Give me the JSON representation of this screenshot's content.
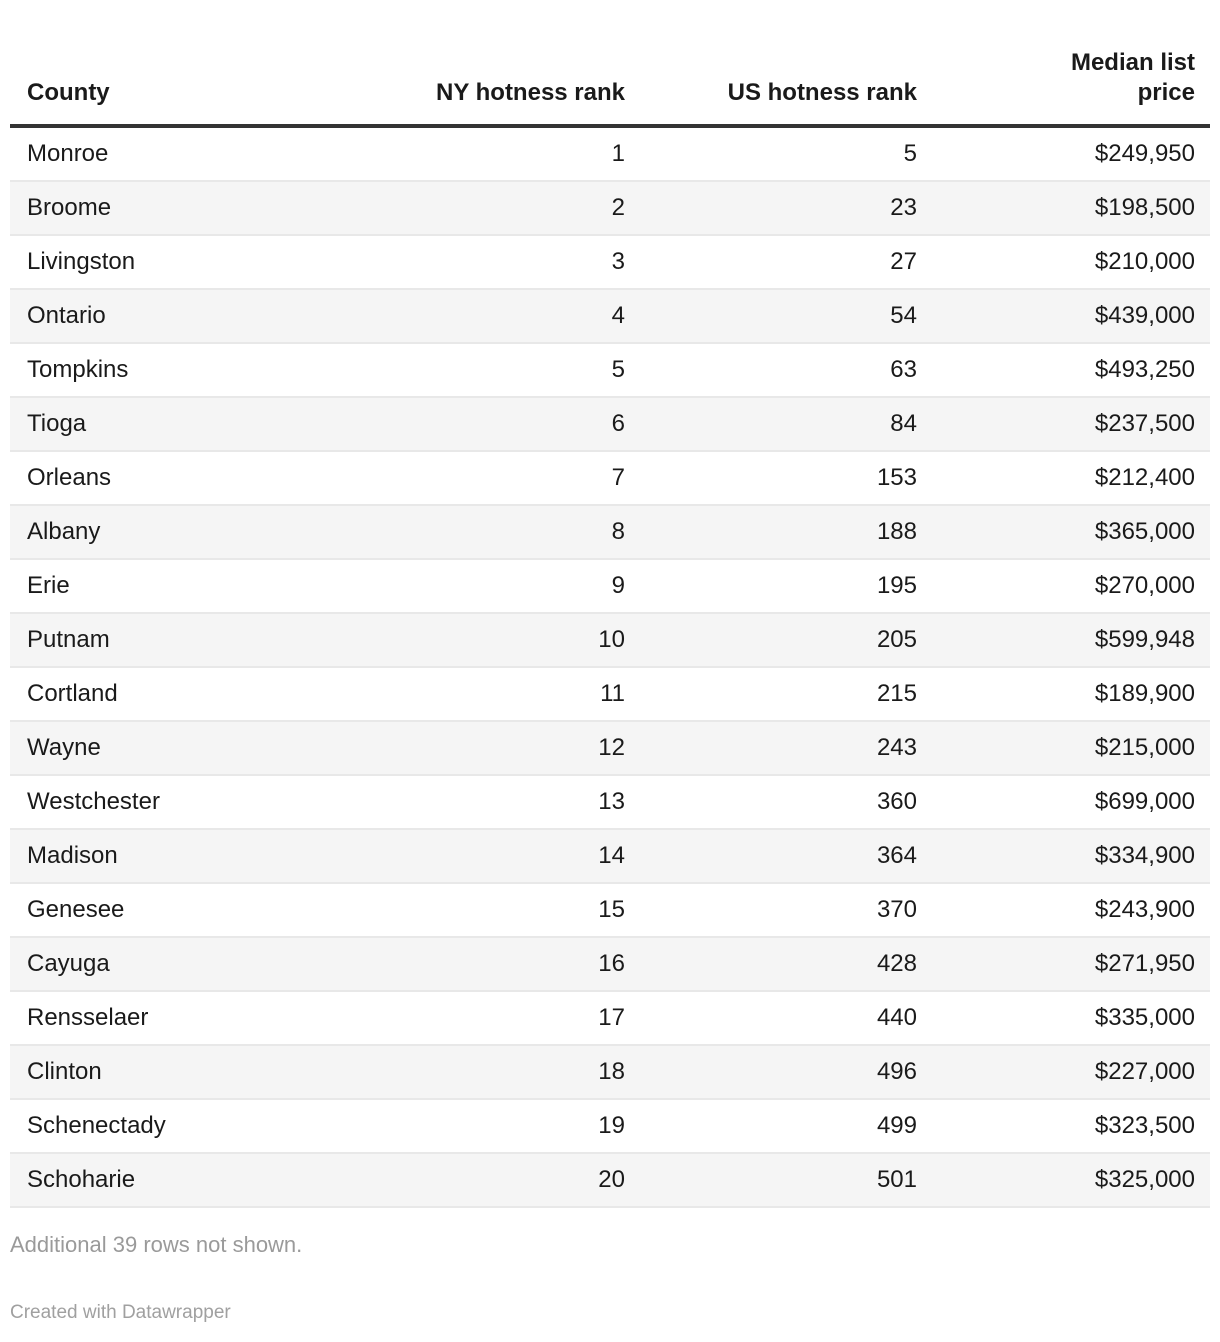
{
  "chart_data": {
    "type": "table",
    "columns": [
      "County",
      "NY hotness rank",
      "US hotness rank",
      "Median list price"
    ],
    "rows": [
      [
        "Monroe",
        1,
        5,
        "$249,950"
      ],
      [
        "Broome",
        2,
        23,
        "$198,500"
      ],
      [
        "Livingston",
        3,
        27,
        "$210,000"
      ],
      [
        "Ontario",
        4,
        54,
        "$439,000"
      ],
      [
        "Tompkins",
        5,
        63,
        "$493,250"
      ],
      [
        "Tioga",
        6,
        84,
        "$237,500"
      ],
      [
        "Orleans",
        7,
        153,
        "$212,400"
      ],
      [
        "Albany",
        8,
        188,
        "$365,000"
      ],
      [
        "Erie",
        9,
        195,
        "$270,000"
      ],
      [
        "Putnam",
        10,
        205,
        "$599,948"
      ],
      [
        "Cortland",
        11,
        215,
        "$189,900"
      ],
      [
        "Wayne",
        12,
        243,
        "$215,000"
      ],
      [
        "Westchester",
        13,
        360,
        "$699,000"
      ],
      [
        "Madison",
        14,
        364,
        "$334,900"
      ],
      [
        "Genesee",
        15,
        370,
        "$243,900"
      ],
      [
        "Cayuga",
        16,
        428,
        "$271,950"
      ],
      [
        "Rensselaer",
        17,
        440,
        "$335,000"
      ],
      [
        "Clinton",
        18,
        496,
        "$227,000"
      ],
      [
        "Schenectady",
        19,
        499,
        "$323,500"
      ],
      [
        "Schoharie",
        20,
        501,
        "$325,000"
      ]
    ],
    "layout": {
      "striped_rows": true,
      "numeric_columns_right_aligned": true
    }
  },
  "footer": {
    "note": "Additional 39 rows not shown.",
    "credit": "Created with Datawrapper"
  },
  "colors": {
    "text": "#1a1a1a",
    "header_rule": "#333333",
    "row_border": "#e8e8e8",
    "stripe": "#f5f5f5",
    "muted_text": "#9a9a9a"
  }
}
